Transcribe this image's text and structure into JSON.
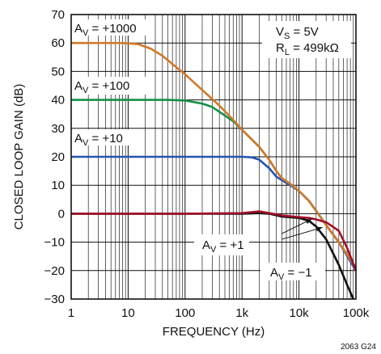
{
  "chart_data": {
    "type": "line",
    "title": "",
    "xlabel": "FREQUENCY (Hz)",
    "ylabel": "CLOSED LOOP GAIN (dB)",
    "xscale": "log",
    "xlim": [
      1,
      100000
    ],
    "ylim": [
      -30,
      70
    ],
    "grid": true,
    "x_tick_labels": [
      "1",
      "10",
      "100",
      "1k",
      "10k",
      "100k"
    ],
    "x_tick_values": [
      1,
      10,
      100,
      1000,
      10000,
      100000
    ],
    "y_ticks": [
      70,
      60,
      50,
      40,
      30,
      20,
      10,
      0,
      -10,
      -20,
      -30
    ],
    "y_tick_labels": [
      "70",
      "60",
      "50",
      "40",
      "30",
      "20",
      "10",
      "0",
      "−10",
      "−20",
      "−30"
    ],
    "conditions": {
      "vs": {
        "main": "V",
        "sub": "S",
        "rest": " = 5V"
      },
      "rl": {
        "main": "R",
        "sub": "L",
        "rest": " = 499kΩ"
      }
    },
    "figure_id": "2063 G24",
    "series": [
      {
        "key": "av1000",
        "color": "#d2782a",
        "label": {
          "main": "A",
          "sub": "V",
          "rest": " = +1000"
        },
        "points": [
          [
            1,
            60
          ],
          [
            3,
            60
          ],
          [
            8,
            60
          ],
          [
            15,
            59.6
          ],
          [
            25,
            58
          ],
          [
            40,
            55.5
          ],
          [
            70,
            51.5
          ],
          [
            100,
            49
          ],
          [
            200,
            43.5
          ],
          [
            400,
            38
          ],
          [
            700,
            33
          ],
          [
            1000,
            29.5
          ],
          [
            2000,
            23.5
          ],
          [
            3000,
            19
          ],
          [
            4000,
            15
          ],
          [
            5000,
            12.5
          ],
          [
            7000,
            10.5
          ],
          [
            10000,
            8
          ],
          [
            15000,
            4.5
          ],
          [
            20000,
            1
          ],
          [
            30000,
            -4
          ],
          [
            50000,
            -10
          ],
          [
            100000,
            -19
          ]
        ]
      },
      {
        "key": "av100",
        "color": "#139045",
        "label": {
          "main": "A",
          "sub": "V",
          "rest": " = +100"
        },
        "points": [
          [
            1,
            40
          ],
          [
            10,
            40
          ],
          [
            50,
            40
          ],
          [
            100,
            39.8
          ],
          [
            200,
            38.7
          ],
          [
            300,
            37.5
          ],
          [
            500,
            34.5
          ],
          [
            700,
            32.5
          ],
          [
            1000,
            29.5
          ],
          [
            2000,
            23.5
          ],
          [
            3000,
            19
          ],
          [
            4000,
            15
          ],
          [
            5000,
            12.5
          ],
          [
            7000,
            10.5
          ],
          [
            10000,
            8
          ],
          [
            15000,
            4.5
          ],
          [
            20000,
            1
          ],
          [
            30000,
            -4
          ],
          [
            50000,
            -10
          ],
          [
            100000,
            -19
          ]
        ]
      },
      {
        "key": "av10",
        "color": "#2255b5",
        "label": {
          "main": "A",
          "sub": "V",
          "rest": " = +10"
        },
        "points": [
          [
            1,
            20
          ],
          [
            100,
            20
          ],
          [
            1000,
            20
          ],
          [
            1500,
            19.8
          ],
          [
            2000,
            19
          ],
          [
            3000,
            16
          ],
          [
            4000,
            13
          ],
          [
            5000,
            11.8
          ],
          [
            7000,
            10
          ],
          [
            10000,
            8
          ],
          [
            15000,
            4.5
          ],
          [
            20000,
            1
          ],
          [
            30000,
            -4
          ],
          [
            50000,
            -10
          ],
          [
            100000,
            -20
          ]
        ]
      },
      {
        "key": "av1",
        "color": "#a01028",
        "label": {
          "main": "A",
          "sub": "V",
          "rest": " = +1"
        },
        "points": [
          [
            1,
            0
          ],
          [
            100,
            0
          ],
          [
            1000,
            0.2
          ],
          [
            2000,
            0.8
          ],
          [
            3000,
            0.2
          ],
          [
            5000,
            -0.6
          ],
          [
            10000,
            -1.2
          ],
          [
            15000,
            -1.5
          ],
          [
            20000,
            -2
          ],
          [
            30000,
            -3
          ],
          [
            50000,
            -6
          ],
          [
            70000,
            -12
          ],
          [
            100000,
            -20
          ]
        ]
      },
      {
        "key": "avm1",
        "color": "#111111",
        "label": {
          "main": "A",
          "sub": "V",
          "rest": " = −1"
        },
        "points": [
          [
            1,
            0
          ],
          [
            100,
            0
          ],
          [
            1000,
            0
          ],
          [
            2000,
            0.2
          ],
          [
            3000,
            0
          ],
          [
            5000,
            -1
          ],
          [
            10000,
            -1.5
          ],
          [
            15000,
            -2.5
          ],
          [
            20000,
            -4.5
          ],
          [
            30000,
            -9
          ],
          [
            50000,
            -18
          ],
          [
            70000,
            -25
          ],
          [
            90000,
            -30
          ]
        ]
      }
    ]
  }
}
